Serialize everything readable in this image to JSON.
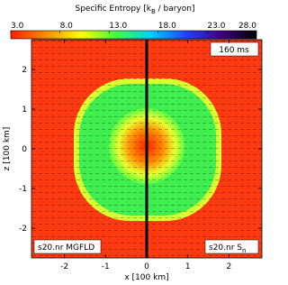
{
  "chart_data": {
    "type": "image",
    "colorbar": {
      "title": [
        "Specific Entropy [k",
        "B",
        " / baryon]"
      ],
      "clim": [
        3,
        28
      ],
      "ticks": [
        {
          "value": 3,
          "label": "3.0"
        },
        {
          "value": 8,
          "label": "8.0"
        },
        {
          "value": 13,
          "label": "13.0"
        },
        {
          "value": 18,
          "label": "18.0"
        },
        {
          "value": 23,
          "label": "23.0"
        },
        {
          "value": 28,
          "label": "28.0"
        }
      ],
      "colormap": [
        "#ff2000",
        "#ff8c00",
        "#ffff00",
        "#40ff40",
        "#00d0ff",
        "#2040ff",
        "#400080",
        "#000000"
      ]
    },
    "xlabel": "x [100 km]",
    "ylabel": "z [100 km]",
    "xlim": [
      -2.8,
      2.8
    ],
    "ylim": [
      -2.75,
      2.75
    ],
    "xticks": [
      -2,
      -1,
      0,
      1,
      2
    ],
    "yticks": [
      -2,
      -1,
      0,
      1,
      2
    ],
    "time_label": "160 ms",
    "left_label": "s20.nr MGFLD",
    "right_label": [
      "s20.nr S",
      "n"
    ]
  }
}
